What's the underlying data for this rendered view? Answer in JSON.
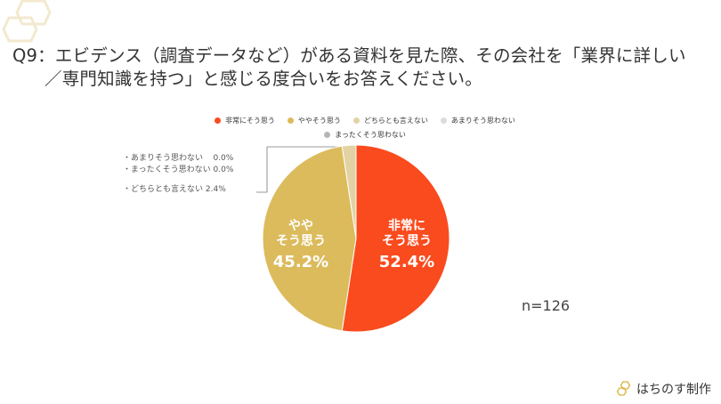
{
  "title": {
    "line1": "Q9：エビデンス（調査データなど）がある資料を見た際、その会社を「業界に詳しい",
    "line2": "／専門知識を持つ」と感じる度合いをお答えください。"
  },
  "chart_data": {
    "type": "pie",
    "categories": [
      "非常にそう思う",
      "ややそう思う",
      "どちらとも言えない",
      "あまりそう思わない",
      "まったくそう思わない"
    ],
    "values": [
      52.4,
      45.2,
      2.4,
      0.0,
      0.0
    ],
    "colors": [
      "#fa4b1e",
      "#dcbb5c",
      "#e3d3a4",
      "#dcdcdc",
      "#b5b5b5"
    ],
    "slice_labels": [
      {
        "line1": "非常に",
        "line2": "そう思う",
        "value": "52.4%"
      },
      {
        "line1": "やや",
        "line2": "そう思う",
        "value": "45.2%"
      }
    ],
    "callouts": [
      {
        "label": "・あまりそう思わない",
        "value": "0.0%"
      },
      {
        "label": "・まったくそう思わない",
        "value": "0.0%"
      },
      {
        "label": "・どちらとも言えない",
        "value": "2.4%"
      }
    ],
    "legend_position": "top",
    "sample_size": "n=126"
  },
  "brand": {
    "name": "はちのす制作"
  }
}
